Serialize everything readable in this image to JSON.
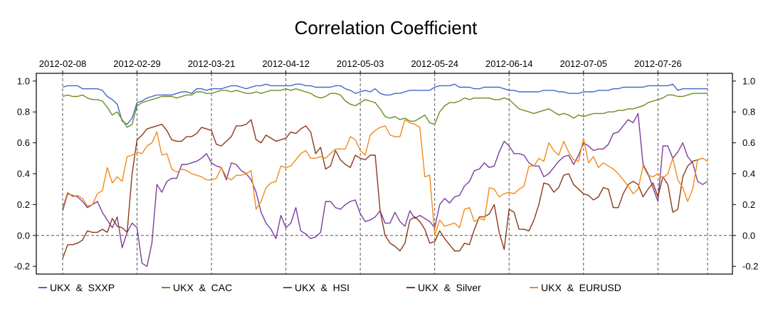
{
  "chart_data": {
    "type": "line",
    "title": "Correlation Coefficient",
    "xlabel": "",
    "ylabel": "",
    "n_points": 131,
    "x_tick_labels": [
      "2012-02-08",
      "2012-02-29",
      "2012-03-21",
      "2012-04-12",
      "2012-05-03",
      "2012-05-24",
      "2012-06-14",
      "2012-07-05",
      "2012-07-26"
    ],
    "x_tick_index": [
      0,
      15,
      30,
      45,
      60,
      75,
      90,
      105,
      120
    ],
    "y_ticks": [
      "1.0",
      "0.8",
      "0.6",
      "0.4",
      "0.2",
      "0.0",
      "-0.2"
    ],
    "y_tick_values": [
      1.0,
      0.8,
      0.6,
      0.4,
      0.2,
      0.0,
      -0.2
    ],
    "ylim": [
      -0.25,
      1.05
    ],
    "vertical_dashed_index": [
      0,
      15,
      30,
      45,
      60,
      75,
      90,
      105,
      120,
      130
    ],
    "horizontal_dashed_y": 0.0,
    "grid": false,
    "legend_position": "bottom",
    "series": [
      {
        "name": "UKX  &  SXXP",
        "color": "#4169C8",
        "values": [
          0.96,
          0.97,
          0.97,
          0.97,
          0.95,
          0.95,
          0.95,
          0.95,
          0.94,
          0.9,
          0.88,
          0.85,
          0.74,
          0.72,
          0.76,
          0.86,
          0.87,
          0.89,
          0.9,
          0.91,
          0.91,
          0.91,
          0.91,
          0.92,
          0.93,
          0.93,
          0.92,
          0.95,
          0.95,
          0.94,
          0.95,
          0.95,
          0.95,
          0.96,
          0.97,
          0.97,
          0.96,
          0.95,
          0.96,
          0.97,
          0.97,
          0.98,
          0.97,
          0.97,
          0.97,
          0.97,
          0.97,
          0.98,
          0.98,
          0.97,
          0.97,
          0.96,
          0.96,
          0.96,
          0.96,
          0.97,
          0.97,
          0.95,
          0.94,
          0.92,
          0.93,
          0.94,
          0.93,
          0.95,
          0.92,
          0.91,
          0.91,
          0.92,
          0.92,
          0.93,
          0.94,
          0.94,
          0.94,
          0.94,
          0.94,
          0.96,
          0.97,
          0.97,
          0.97,
          0.98,
          0.96,
          0.96,
          0.96,
          0.95,
          0.95,
          0.96,
          0.96,
          0.96,
          0.96,
          0.95,
          0.94,
          0.94,
          0.93,
          0.93,
          0.93,
          0.93,
          0.93,
          0.94,
          0.94,
          0.94,
          0.93,
          0.93,
          0.92,
          0.92,
          0.92,
          0.93,
          0.93,
          0.93,
          0.94,
          0.94,
          0.94,
          0.95,
          0.95,
          0.96,
          0.96,
          0.96,
          0.96,
          0.96,
          0.97,
          0.97,
          0.97,
          0.97,
          0.97,
          0.98,
          0.94,
          0.95,
          0.95,
          0.95,
          0.95,
          0.95,
          0.95
        ]
      },
      {
        "name": "UKX  &  CAC",
        "color": "#6B8E23",
        "values": [
          0.9,
          0.91,
          0.9,
          0.9,
          0.91,
          0.89,
          0.88,
          0.88,
          0.87,
          0.83,
          0.78,
          0.8,
          0.75,
          0.7,
          0.72,
          0.84,
          0.86,
          0.87,
          0.88,
          0.89,
          0.9,
          0.9,
          0.9,
          0.89,
          0.9,
          0.91,
          0.91,
          0.93,
          0.93,
          0.92,
          0.92,
          0.93,
          0.94,
          0.94,
          0.93,
          0.94,
          0.93,
          0.92,
          0.92,
          0.93,
          0.92,
          0.93,
          0.94,
          0.94,
          0.94,
          0.95,
          0.94,
          0.95,
          0.94,
          0.93,
          0.92,
          0.9,
          0.89,
          0.9,
          0.92,
          0.92,
          0.91,
          0.87,
          0.85,
          0.84,
          0.86,
          0.88,
          0.87,
          0.86,
          0.82,
          0.77,
          0.76,
          0.77,
          0.75,
          0.76,
          0.74,
          0.74,
          0.76,
          0.78,
          0.73,
          0.72,
          0.8,
          0.84,
          0.86,
          0.86,
          0.87,
          0.89,
          0.88,
          0.89,
          0.89,
          0.89,
          0.89,
          0.88,
          0.88,
          0.89,
          0.88,
          0.85,
          0.82,
          0.81,
          0.8,
          0.79,
          0.8,
          0.81,
          0.82,
          0.8,
          0.78,
          0.79,
          0.78,
          0.76,
          0.78,
          0.77,
          0.78,
          0.79,
          0.79,
          0.79,
          0.8,
          0.8,
          0.81,
          0.81,
          0.82,
          0.82,
          0.83,
          0.84,
          0.86,
          0.87,
          0.88,
          0.89,
          0.91,
          0.91,
          0.9,
          0.9,
          0.91,
          0.92,
          0.92,
          0.92,
          0.92
        ]
      },
      {
        "name": "UKX  &  HSI",
        "color": "#7B3F9E",
        "values": [
          0.16,
          0.27,
          0.26,
          0.25,
          0.22,
          0.18,
          0.2,
          0.22,
          0.15,
          0.1,
          0.05,
          0.12,
          -0.08,
          0.02,
          0.08,
          0.05,
          -0.18,
          -0.2,
          -0.05,
          0.33,
          0.28,
          0.35,
          0.37,
          0.37,
          0.46,
          0.46,
          0.47,
          0.48,
          0.5,
          0.53,
          0.47,
          0.45,
          0.44,
          0.36,
          0.47,
          0.46,
          0.42,
          0.4,
          0.36,
          0.28,
          0.15,
          0.08,
          0.04,
          -0.02,
          0.13,
          0.05,
          0.08,
          0.18,
          0.03,
          0.01,
          -0.02,
          -0.01,
          0.02,
          0.22,
          0.22,
          0.18,
          0.17,
          0.2,
          0.22,
          0.23,
          0.14,
          0.09,
          0.1,
          0.12,
          0.16,
          0.08,
          0.08,
          0.15,
          0.09,
          0.06,
          0.16,
          0.11,
          0.13,
          0.11,
          0.09,
          0.05,
          0.2,
          0.24,
          0.21,
          0.25,
          0.26,
          0.32,
          0.35,
          0.42,
          0.43,
          0.47,
          0.44,
          0.45,
          0.54,
          0.61,
          0.58,
          0.53,
          0.53,
          0.52,
          0.47,
          0.45,
          0.45,
          0.38,
          0.4,
          0.44,
          0.48,
          0.51,
          0.52,
          0.46,
          0.52,
          0.6,
          0.58,
          0.55,
          0.56,
          0.56,
          0.59,
          0.66,
          0.67,
          0.71,
          0.75,
          0.73,
          0.79,
          0.46,
          0.4,
          0.31,
          0.22,
          0.58,
          0.58,
          0.5,
          0.54,
          0.6,
          0.51,
          0.47,
          0.35,
          0.33,
          0.35
        ]
      },
      {
        "name": "UKX  &  Silver",
        "color": "#8B3A1A",
        "values": [
          -0.15,
          -0.06,
          -0.06,
          -0.05,
          -0.03,
          0.03,
          0.02,
          0.02,
          0.04,
          0.02,
          0.11,
          0.06,
          0.05,
          0.02,
          0.4,
          0.62,
          0.65,
          0.69,
          0.7,
          0.71,
          0.72,
          0.68,
          0.62,
          0.61,
          0.61,
          0.64,
          0.64,
          0.66,
          0.7,
          0.69,
          0.68,
          0.59,
          0.58,
          0.61,
          0.64,
          0.71,
          0.71,
          0.72,
          0.75,
          0.62,
          0.6,
          0.65,
          0.63,
          0.61,
          0.62,
          0.63,
          0.67,
          0.66,
          0.69,
          0.71,
          0.67,
          0.53,
          0.57,
          0.43,
          0.45,
          0.55,
          0.49,
          0.46,
          0.44,
          0.52,
          0.5,
          0.49,
          0.52,
          0.52,
          0.16,
          0.0,
          -0.05,
          -0.07,
          -0.1,
          -0.05,
          0.1,
          0.12,
          0.09,
          0.04,
          -0.05,
          -0.04,
          0.03,
          -0.02,
          -0.06,
          -0.1,
          -0.1,
          -0.05,
          -0.06,
          0.04,
          0.12,
          0.12,
          0.14,
          0.2,
          0.02,
          -0.09,
          0.17,
          0.15,
          0.04,
          0.04,
          0.03,
          0.1,
          0.2,
          0.34,
          0.33,
          0.28,
          0.31,
          0.39,
          0.4,
          0.33,
          0.3,
          0.27,
          0.26,
          0.23,
          0.25,
          0.31,
          0.3,
          0.18,
          0.18,
          0.27,
          0.33,
          0.35,
          0.33,
          0.25,
          0.3,
          0.34,
          0.25,
          0.38,
          0.33,
          0.15,
          0.17,
          0.38,
          0.45,
          0.48,
          0.49,
          0.5
        ]
      },
      {
        "name": "UKX  &  EURUSD",
        "color": "#F28A1C",
        "values": [
          0.18,
          0.28,
          0.25,
          0.26,
          0.24,
          0.19,
          0.2,
          0.27,
          0.29,
          0.44,
          0.34,
          0.38,
          0.35,
          0.51,
          0.52,
          0.54,
          0.53,
          0.58,
          0.6,
          0.67,
          0.52,
          0.53,
          0.43,
          0.41,
          0.43,
          0.42,
          0.4,
          0.39,
          0.38,
          0.36,
          0.36,
          0.37,
          0.44,
          0.38,
          0.36,
          0.39,
          0.39,
          0.4,
          0.42,
          0.17,
          0.22,
          0.31,
          0.34,
          0.35,
          0.45,
          0.44,
          0.45,
          0.49,
          0.53,
          0.55,
          0.5,
          0.5,
          0.51,
          0.5,
          0.53,
          0.56,
          0.56,
          0.56,
          0.64,
          0.62,
          0.55,
          0.52,
          0.65,
          0.68,
          0.7,
          0.71,
          0.65,
          0.64,
          0.64,
          0.75,
          0.73,
          0.72,
          0.7,
          0.38,
          0.39,
          0.0,
          0.1,
          0.06,
          0.07,
          0.08,
          0.05,
          0.17,
          0.18,
          0.09,
          0.11,
          0.1,
          0.31,
          0.3,
          0.25,
          0.27,
          0.28,
          0.27,
          0.3,
          0.32,
          0.45,
          0.45,
          0.5,
          0.48,
          0.6,
          0.55,
          0.52,
          0.61,
          0.54,
          0.49,
          0.48,
          0.63,
          0.47,
          0.51,
          0.44,
          0.47,
          0.45,
          0.43,
          0.4,
          0.36,
          0.32,
          0.27,
          0.3,
          0.45,
          0.39,
          0.38,
          0.4,
          0.37,
          0.4,
          0.5,
          0.36,
          0.31,
          0.22,
          0.3,
          0.49,
          0.5,
          0.48
        ]
      }
    ]
  }
}
